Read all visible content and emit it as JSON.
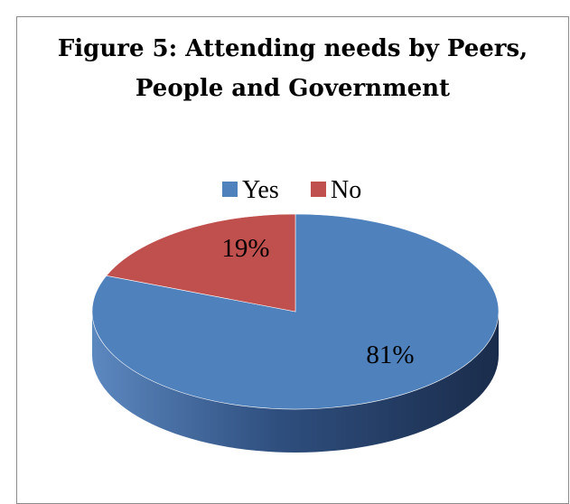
{
  "chart_data": {
    "type": "pie",
    "title_lines": [
      "Figure 5:  Attending needs by Peers,",
      "People and Government"
    ],
    "categories": [
      "Yes",
      "No"
    ],
    "values": [
      81,
      19
    ],
    "labels": [
      "81%",
      "19%"
    ],
    "colors": [
      "#4F81BD",
      "#C0504D"
    ],
    "legend_position": "top",
    "style": "3d"
  }
}
